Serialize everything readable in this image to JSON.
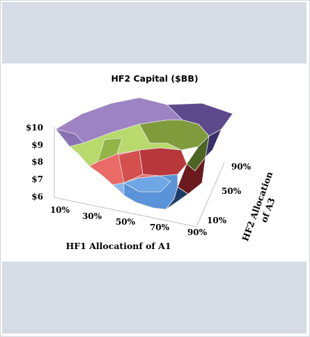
{
  "chart_data": {
    "type": "surface",
    "title": "HF2 Capital ($BB)",
    "xlabel": "HF1 Allocationf of A1",
    "ylabel_lines": [
      "HF2 Allocation",
      "of A3"
    ],
    "zlabel": "",
    "x_ticks": [
      "10%",
      "30%",
      "50%",
      "70%",
      "90%"
    ],
    "y_ticks": [
      "10%",
      "50%",
      "90%"
    ],
    "z_ticks": [
      "$6",
      "$7",
      "$8",
      "$9",
      "$10"
    ],
    "zlim": [
      6,
      10
    ],
    "legend": "none",
    "bands": [
      {
        "range": [
          6,
          7
        ],
        "color": "#4f81bd"
      },
      {
        "range": [
          7,
          8
        ],
        "color": "#c0504d"
      },
      {
        "range": [
          8,
          9
        ],
        "color": "#9bbb59"
      },
      {
        "range": [
          9,
          10
        ],
        "color": "#8064a2"
      }
    ]
  }
}
